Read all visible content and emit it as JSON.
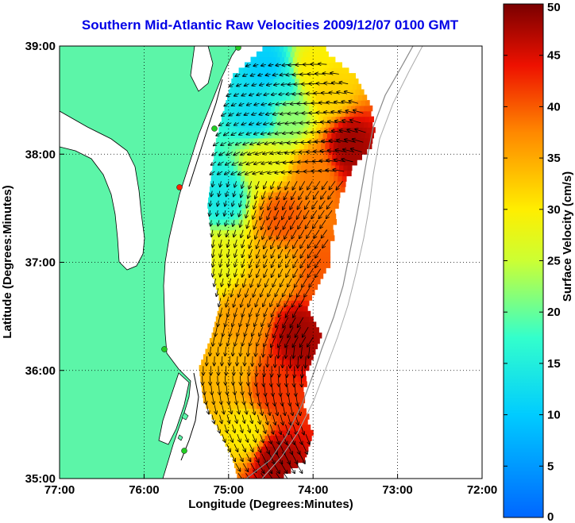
{
  "chart_data": {
    "type": "heatmap",
    "title": "Southern Mid-Atlantic Raw Velocities 2009/12/07 0100 GMT",
    "xlabel": "Longitude (Degrees:Minutes)",
    "ylabel": "Latitude (Degrees:Minutes)",
    "x_ticks": [
      "77:00",
      "76:00",
      "75:00",
      "74:00",
      "73:00",
      "72:00"
    ],
    "x_tick_values": [
      -77,
      -76,
      -75,
      -74,
      -73,
      -72
    ],
    "y_ticks": [
      "39:00",
      "38:00",
      "37:00",
      "36:00",
      "35:00"
    ],
    "y_tick_values": [
      39,
      38,
      37,
      36,
      35
    ],
    "xlim": [
      -77,
      -72
    ],
    "ylim": [
      35,
      39
    ],
    "grid": true,
    "colorbar": {
      "label": "Surface Velocity (cm/s)",
      "range": [
        0,
        50
      ],
      "ticks": [
        "0",
        "5",
        "10",
        "15",
        "20",
        "25",
        "30",
        "35",
        "40",
        "45",
        "50"
      ],
      "tick_values": [
        0,
        5,
        10,
        15,
        20,
        25,
        30,
        35,
        40,
        45,
        50
      ],
      "colormap": "jet"
    },
    "colors": {
      "land": "#5cf5a8",
      "title": "#0000e6",
      "station": "#22cc22",
      "station_alert": "#ff2200"
    },
    "velocity_field": [
      {
        "lon": -74.55,
        "lat": 38.75,
        "speed": 10
      },
      {
        "lon": -74.4,
        "lat": 38.6,
        "speed": 15
      },
      {
        "lon": -74.05,
        "lat": 38.75,
        "speed": 30
      },
      {
        "lon": -73.85,
        "lat": 38.55,
        "speed": 32
      },
      {
        "lon": -74.7,
        "lat": 38.35,
        "speed": 12
      },
      {
        "lon": -74.3,
        "lat": 38.35,
        "speed": 22
      },
      {
        "lon": -73.6,
        "lat": 38.05,
        "speed": 48
      },
      {
        "lon": -74.6,
        "lat": 37.9,
        "speed": 28
      },
      {
        "lon": -74.0,
        "lat": 37.8,
        "speed": 38
      },
      {
        "lon": -75.1,
        "lat": 37.6,
        "speed": 14
      },
      {
        "lon": -74.4,
        "lat": 37.4,
        "speed": 40
      },
      {
        "lon": -75.1,
        "lat": 37.0,
        "speed": 28
      },
      {
        "lon": -74.5,
        "lat": 36.9,
        "speed": 34
      },
      {
        "lon": -73.9,
        "lat": 36.85,
        "speed": 40
      },
      {
        "lon": -74.8,
        "lat": 36.5,
        "speed": 36
      },
      {
        "lon": -74.2,
        "lat": 36.3,
        "speed": 48
      },
      {
        "lon": -75.0,
        "lat": 36.0,
        "speed": 34
      },
      {
        "lon": -74.5,
        "lat": 35.8,
        "speed": 42
      },
      {
        "lon": -74.8,
        "lat": 35.4,
        "speed": 30
      },
      {
        "lon": -74.5,
        "lat": 35.15,
        "speed": 48
      }
    ]
  }
}
